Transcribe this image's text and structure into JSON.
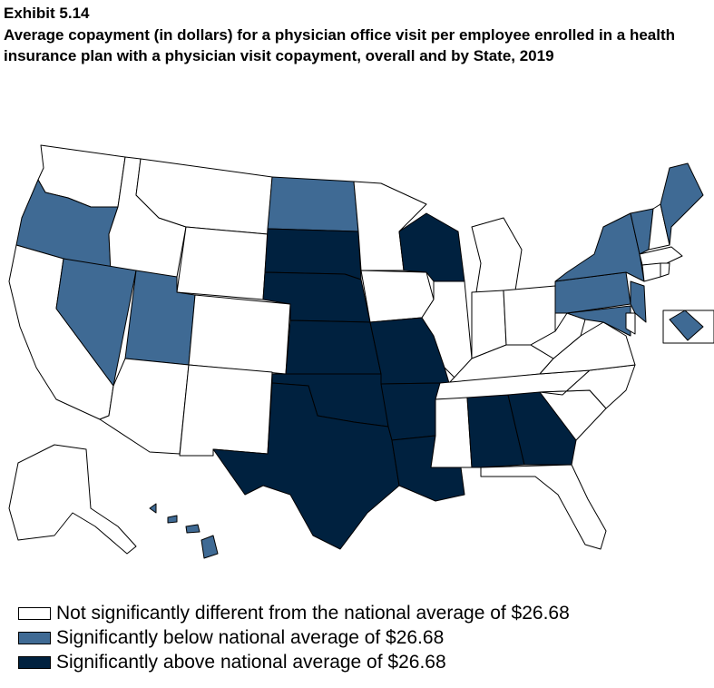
{
  "exhibit": "Exhibit 5.14",
  "title": "Average copayment (in dollars) for a physician office visit per employee enrolled in a health insurance plan with a physician visit copayment, overall and by State, 2019",
  "colors": {
    "not_different": "#ffffff",
    "below": "#3f6a94",
    "above": "#00213f"
  },
  "legend": [
    {
      "key": "not_different",
      "label": "Not significantly different from the national average of $26.68"
    },
    {
      "key": "below",
      "label": "Significantly below national average of $26.68"
    },
    {
      "key": "above",
      "label": "Significantly above national average of $26.68"
    }
  ],
  "states": {
    "below": [
      "OR",
      "NV",
      "UT",
      "ND",
      "NY",
      "VT",
      "ME",
      "PA",
      "NJ",
      "MD",
      "DC",
      "HI"
    ],
    "above": [
      "SD",
      "NE",
      "KS",
      "OK",
      "TX",
      "MO",
      "AR",
      "LA",
      "WI",
      "AL",
      "GA"
    ]
  }
}
